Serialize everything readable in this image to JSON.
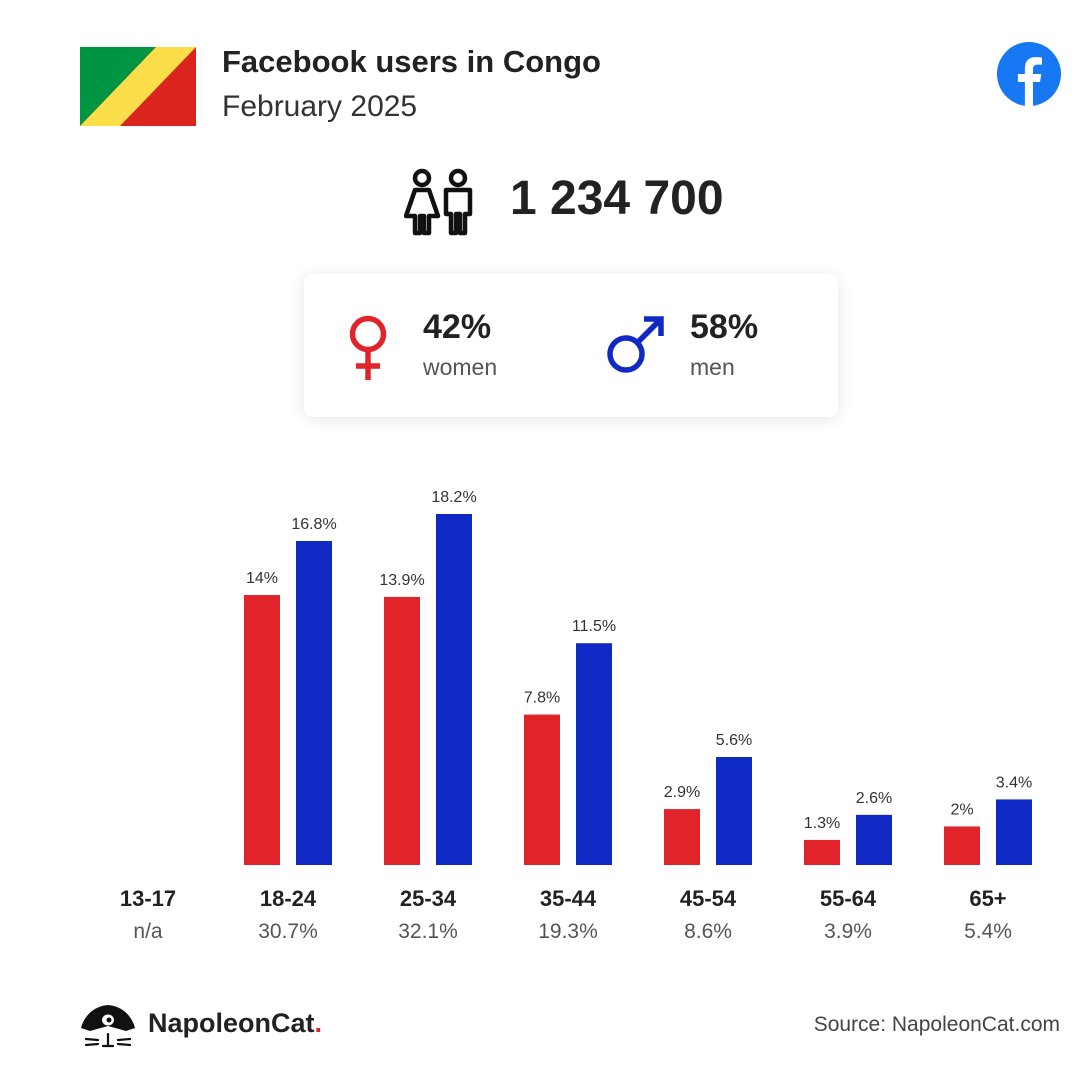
{
  "header": {
    "title": "Facebook users in Congo",
    "subtitle": "February 2025"
  },
  "total_users": "1 234 700",
  "gender": {
    "female": {
      "pct": "42%",
      "label": "women"
    },
    "male": {
      "pct": "58%",
      "label": "men"
    }
  },
  "colors": {
    "women": "#e0242a",
    "men": "#1029c4",
    "facebook": "#1877f2"
  },
  "chart_data": {
    "type": "bar",
    "categories": [
      "13-17",
      "18-24",
      "25-34",
      "35-44",
      "45-54",
      "55-64",
      "65+"
    ],
    "category_totals": [
      "n/a",
      "30.7%",
      "32.1%",
      "19.3%",
      "8.6%",
      "3.9%",
      "5.4%"
    ],
    "series": [
      {
        "name": "women",
        "values": [
          null,
          14,
          13.9,
          7.8,
          2.9,
          1.3,
          2
        ],
        "labels": [
          "",
          "14%",
          "13.9%",
          "7.8%",
          "2.9%",
          "1.3%",
          "2%"
        ]
      },
      {
        "name": "men",
        "values": [
          null,
          16.8,
          18.2,
          11.5,
          5.6,
          2.6,
          3.4
        ],
        "labels": [
          "",
          "16.8%",
          "18.2%",
          "11.5%",
          "5.6%",
          "2.6%",
          "3.4%"
        ]
      }
    ],
    "ylim": [
      0,
      18.2
    ],
    "grid": false
  },
  "footer": {
    "brand": "NapoleonCat",
    "brand_dot": ".",
    "source": "Source: NapoleonCat.com"
  }
}
